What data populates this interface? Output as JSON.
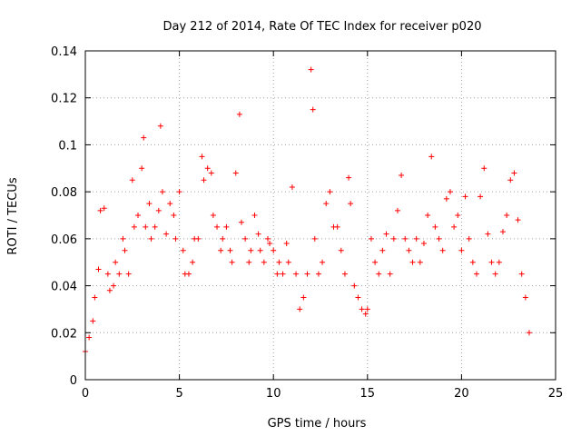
{
  "chart_data": {
    "type": "scatter",
    "title": "Day 212 of 2014, Rate Of TEC Index for receiver p020",
    "xlabel": "GPS time / hours",
    "ylabel": "ROTI / TECUs",
    "xlim": [
      0,
      25
    ],
    "ylim": [
      0,
      0.14
    ],
    "xticks": [
      0,
      5,
      10,
      15,
      20,
      25
    ],
    "xtick_labels": [
      "0",
      "5",
      "10",
      "15",
      "20",
      "25"
    ],
    "yticks": [
      0,
      0.02,
      0.04,
      0.06,
      0.08,
      0.1,
      0.12,
      0.14
    ],
    "ytick_labels": [
      "0",
      "0.02",
      "0.04",
      "0.06",
      "0.08",
      "0.1",
      "0.12",
      "0.14"
    ],
    "grid": true,
    "marker": "plus",
    "color": "#ff0000",
    "series": [
      {
        "name": "ROTI",
        "x": [
          0.0,
          0.2,
          0.4,
          0.5,
          0.7,
          0.8,
          1.0,
          1.2,
          1.3,
          1.5,
          1.6,
          1.8,
          2.0,
          2.1,
          2.3,
          2.5,
          2.6,
          2.8,
          3.0,
          3.1,
          3.2,
          3.4,
          3.5,
          3.7,
          3.9,
          4.0,
          4.1,
          4.3,
          4.5,
          4.7,
          4.8,
          5.0,
          5.2,
          5.3,
          5.5,
          5.7,
          5.8,
          6.0,
          6.2,
          6.3,
          6.5,
          6.7,
          6.8,
          7.0,
          7.2,
          7.3,
          7.5,
          7.7,
          7.8,
          8.0,
          8.2,
          8.3,
          8.5,
          8.7,
          8.8,
          9.0,
          9.2,
          9.3,
          9.5,
          9.7,
          9.8,
          10.0,
          10.2,
          10.3,
          10.5,
          10.7,
          10.8,
          11.0,
          11.2,
          11.4,
          11.6,
          11.8,
          12.0,
          12.1,
          12.2,
          12.4,
          12.6,
          12.8,
          13.0,
          13.2,
          13.4,
          13.6,
          13.8,
          14.0,
          14.1,
          14.3,
          14.5,
          14.7,
          14.9,
          15.0,
          15.2,
          15.4,
          15.6,
          15.8,
          16.0,
          16.2,
          16.4,
          16.6,
          16.8,
          17.0,
          17.2,
          17.4,
          17.6,
          17.8,
          18.0,
          18.2,
          18.4,
          18.6,
          18.8,
          19.0,
          19.2,
          19.4,
          19.6,
          19.8,
          20.0,
          20.2,
          20.4,
          20.6,
          20.8,
          21.0,
          21.2,
          21.4,
          21.6,
          21.8,
          22.0,
          22.2,
          22.4,
          22.6,
          22.8,
          23.0,
          23.2,
          23.4,
          23.6
        ],
        "y": [
          0.012,
          0.018,
          0.025,
          0.035,
          0.047,
          0.072,
          0.073,
          0.045,
          0.038,
          0.04,
          0.05,
          0.045,
          0.06,
          0.055,
          0.045,
          0.085,
          0.065,
          0.07,
          0.09,
          0.103,
          0.065,
          0.075,
          0.06,
          0.065,
          0.072,
          0.108,
          0.08,
          0.062,
          0.075,
          0.07,
          0.06,
          0.08,
          0.055,
          0.045,
          0.045,
          0.05,
          0.06,
          0.06,
          0.095,
          0.085,
          0.09,
          0.088,
          0.07,
          0.065,
          0.055,
          0.06,
          0.065,
          0.055,
          0.05,
          0.088,
          0.113,
          0.067,
          0.06,
          0.05,
          0.055,
          0.07,
          0.062,
          0.055,
          0.05,
          0.06,
          0.058,
          0.055,
          0.045,
          0.05,
          0.045,
          0.058,
          0.05,
          0.082,
          0.045,
          0.03,
          0.035,
          0.045,
          0.132,
          0.115,
          0.06,
          0.045,
          0.05,
          0.075,
          0.08,
          0.065,
          0.065,
          0.055,
          0.045,
          0.086,
          0.075,
          0.04,
          0.035,
          0.03,
          0.028,
          0.03,
          0.06,
          0.05,
          0.045,
          0.055,
          0.062,
          0.045,
          0.06,
          0.072,
          0.087,
          0.06,
          0.055,
          0.05,
          0.06,
          0.05,
          0.058,
          0.07,
          0.095,
          0.065,
          0.06,
          0.055,
          0.077,
          0.08,
          0.065,
          0.07,
          0.055,
          0.078,
          0.06,
          0.05,
          0.045,
          0.078,
          0.09,
          0.062,
          0.05,
          0.045,
          0.05,
          0.063,
          0.07,
          0.085,
          0.088,
          0.068,
          0.045,
          0.035,
          0.02
        ]
      }
    ]
  }
}
